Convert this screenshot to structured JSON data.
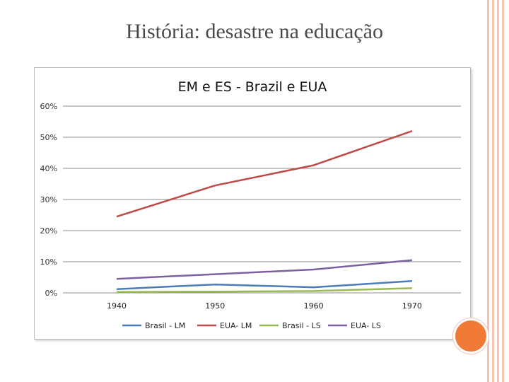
{
  "slide": {
    "title": "História: desastre na educação"
  },
  "chart_data": {
    "type": "line",
    "title": "EM e ES - Brazil e EUA",
    "categories": [
      "1940",
      "1950",
      "1960",
      "1970"
    ],
    "y_ticks": [
      "0%",
      "10%",
      "20%",
      "30%",
      "40%",
      "50%",
      "60%"
    ],
    "ylim": [
      0,
      60
    ],
    "grid": true,
    "legend_position": "bottom",
    "series": [
      {
        "name": "Brasil - LM",
        "color": "#4a7ebb",
        "values": [
          1.2,
          2.7,
          1.8,
          3.8
        ]
      },
      {
        "name": "EUA- LM",
        "color": "#be4b48",
        "values": [
          24.5,
          34.5,
          41.0,
          52.0
        ]
      },
      {
        "name": "Brasil - LS",
        "color": "#98b954",
        "values": [
          0.3,
          0.4,
          0.6,
          1.5
        ]
      },
      {
        "name": "EUA- LS",
        "color": "#7d60a0",
        "values": [
          4.5,
          6.0,
          7.5,
          10.5
        ]
      }
    ]
  }
}
